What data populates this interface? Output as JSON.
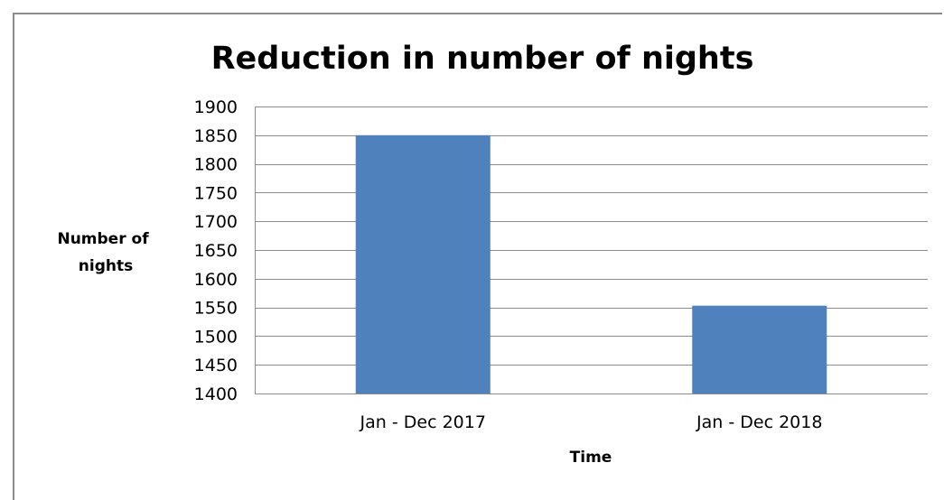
{
  "chart_data": {
    "type": "bar",
    "title": "Reduction in number of nights",
    "xlabel": "Time",
    "ylabel": [
      "Number of",
      "nights"
    ],
    "categories": [
      "Jan - Dec 2017",
      "Jan - Dec 2018"
    ],
    "values": [
      1850,
      1553
    ],
    "ylim": [
      1400,
      1900
    ],
    "yticks": [
      1400,
      1450,
      1500,
      1550,
      1600,
      1650,
      1700,
      1750,
      1800,
      1850,
      1900
    ],
    "grid": true,
    "legend": "none",
    "bar_color": "#4f81bd",
    "grid_color": "#8c8c8c"
  }
}
